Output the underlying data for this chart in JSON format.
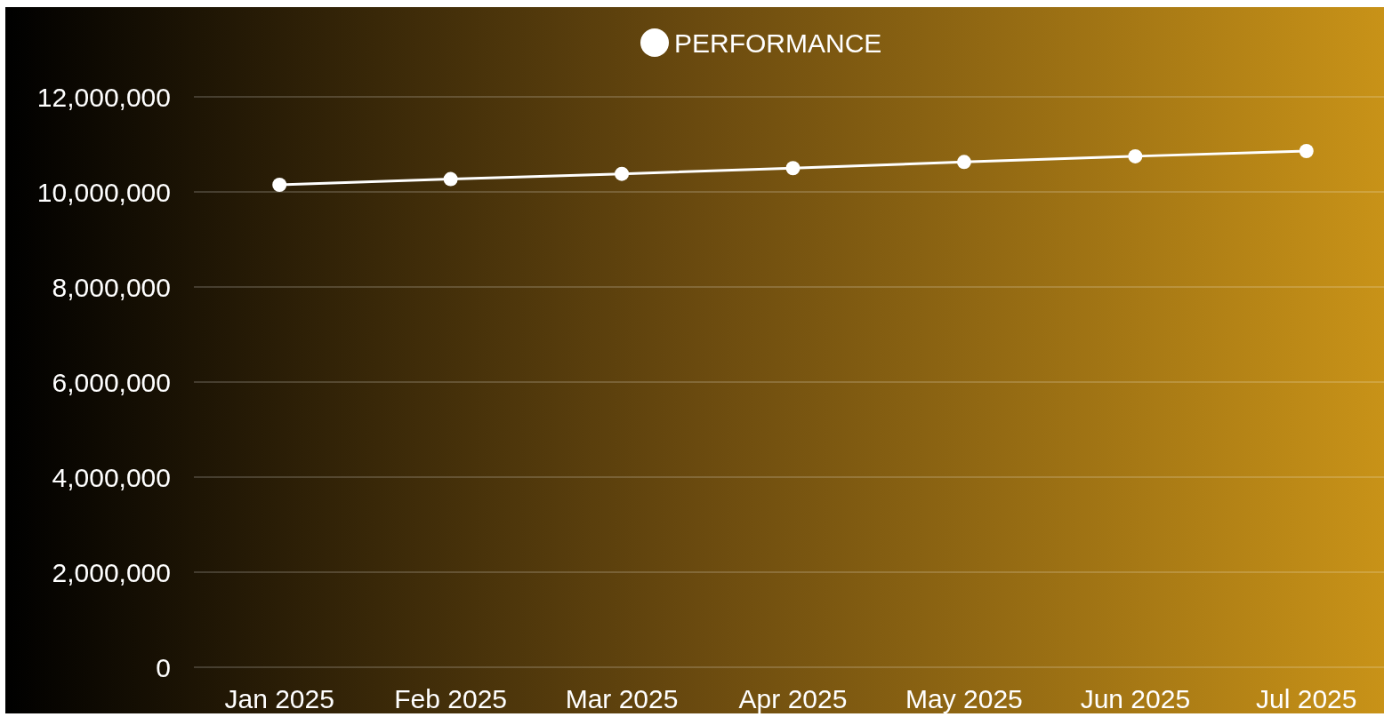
{
  "chart_data": {
    "type": "line",
    "categories": [
      "Jan 2025",
      "Feb 2025",
      "Mar 2025",
      "Apr 2025",
      "May 2025",
      "Jun 2025",
      "Jul 2025"
    ],
    "series": [
      {
        "name": "PERFORMANCE",
        "color": "#ffffff",
        "values": [
          10150000,
          10270000,
          10380000,
          10500000,
          10630000,
          10750000,
          10860000
        ]
      }
    ],
    "ylim": [
      0,
      12000000
    ],
    "yticks": [
      {
        "value": 0,
        "label": "0"
      },
      {
        "value": 2000000,
        "label": "2,000,000"
      },
      {
        "value": 4000000,
        "label": "4,000,000"
      },
      {
        "value": 6000000,
        "label": "6,000,000"
      },
      {
        "value": 8000000,
        "label": "8,000,000"
      },
      {
        "value": 10000000,
        "label": "10,000,000"
      },
      {
        "value": 12000000,
        "label": "12,000,000"
      }
    ],
    "grid": "y",
    "legend": "top",
    "marker": "circle",
    "line_style": "solid"
  }
}
